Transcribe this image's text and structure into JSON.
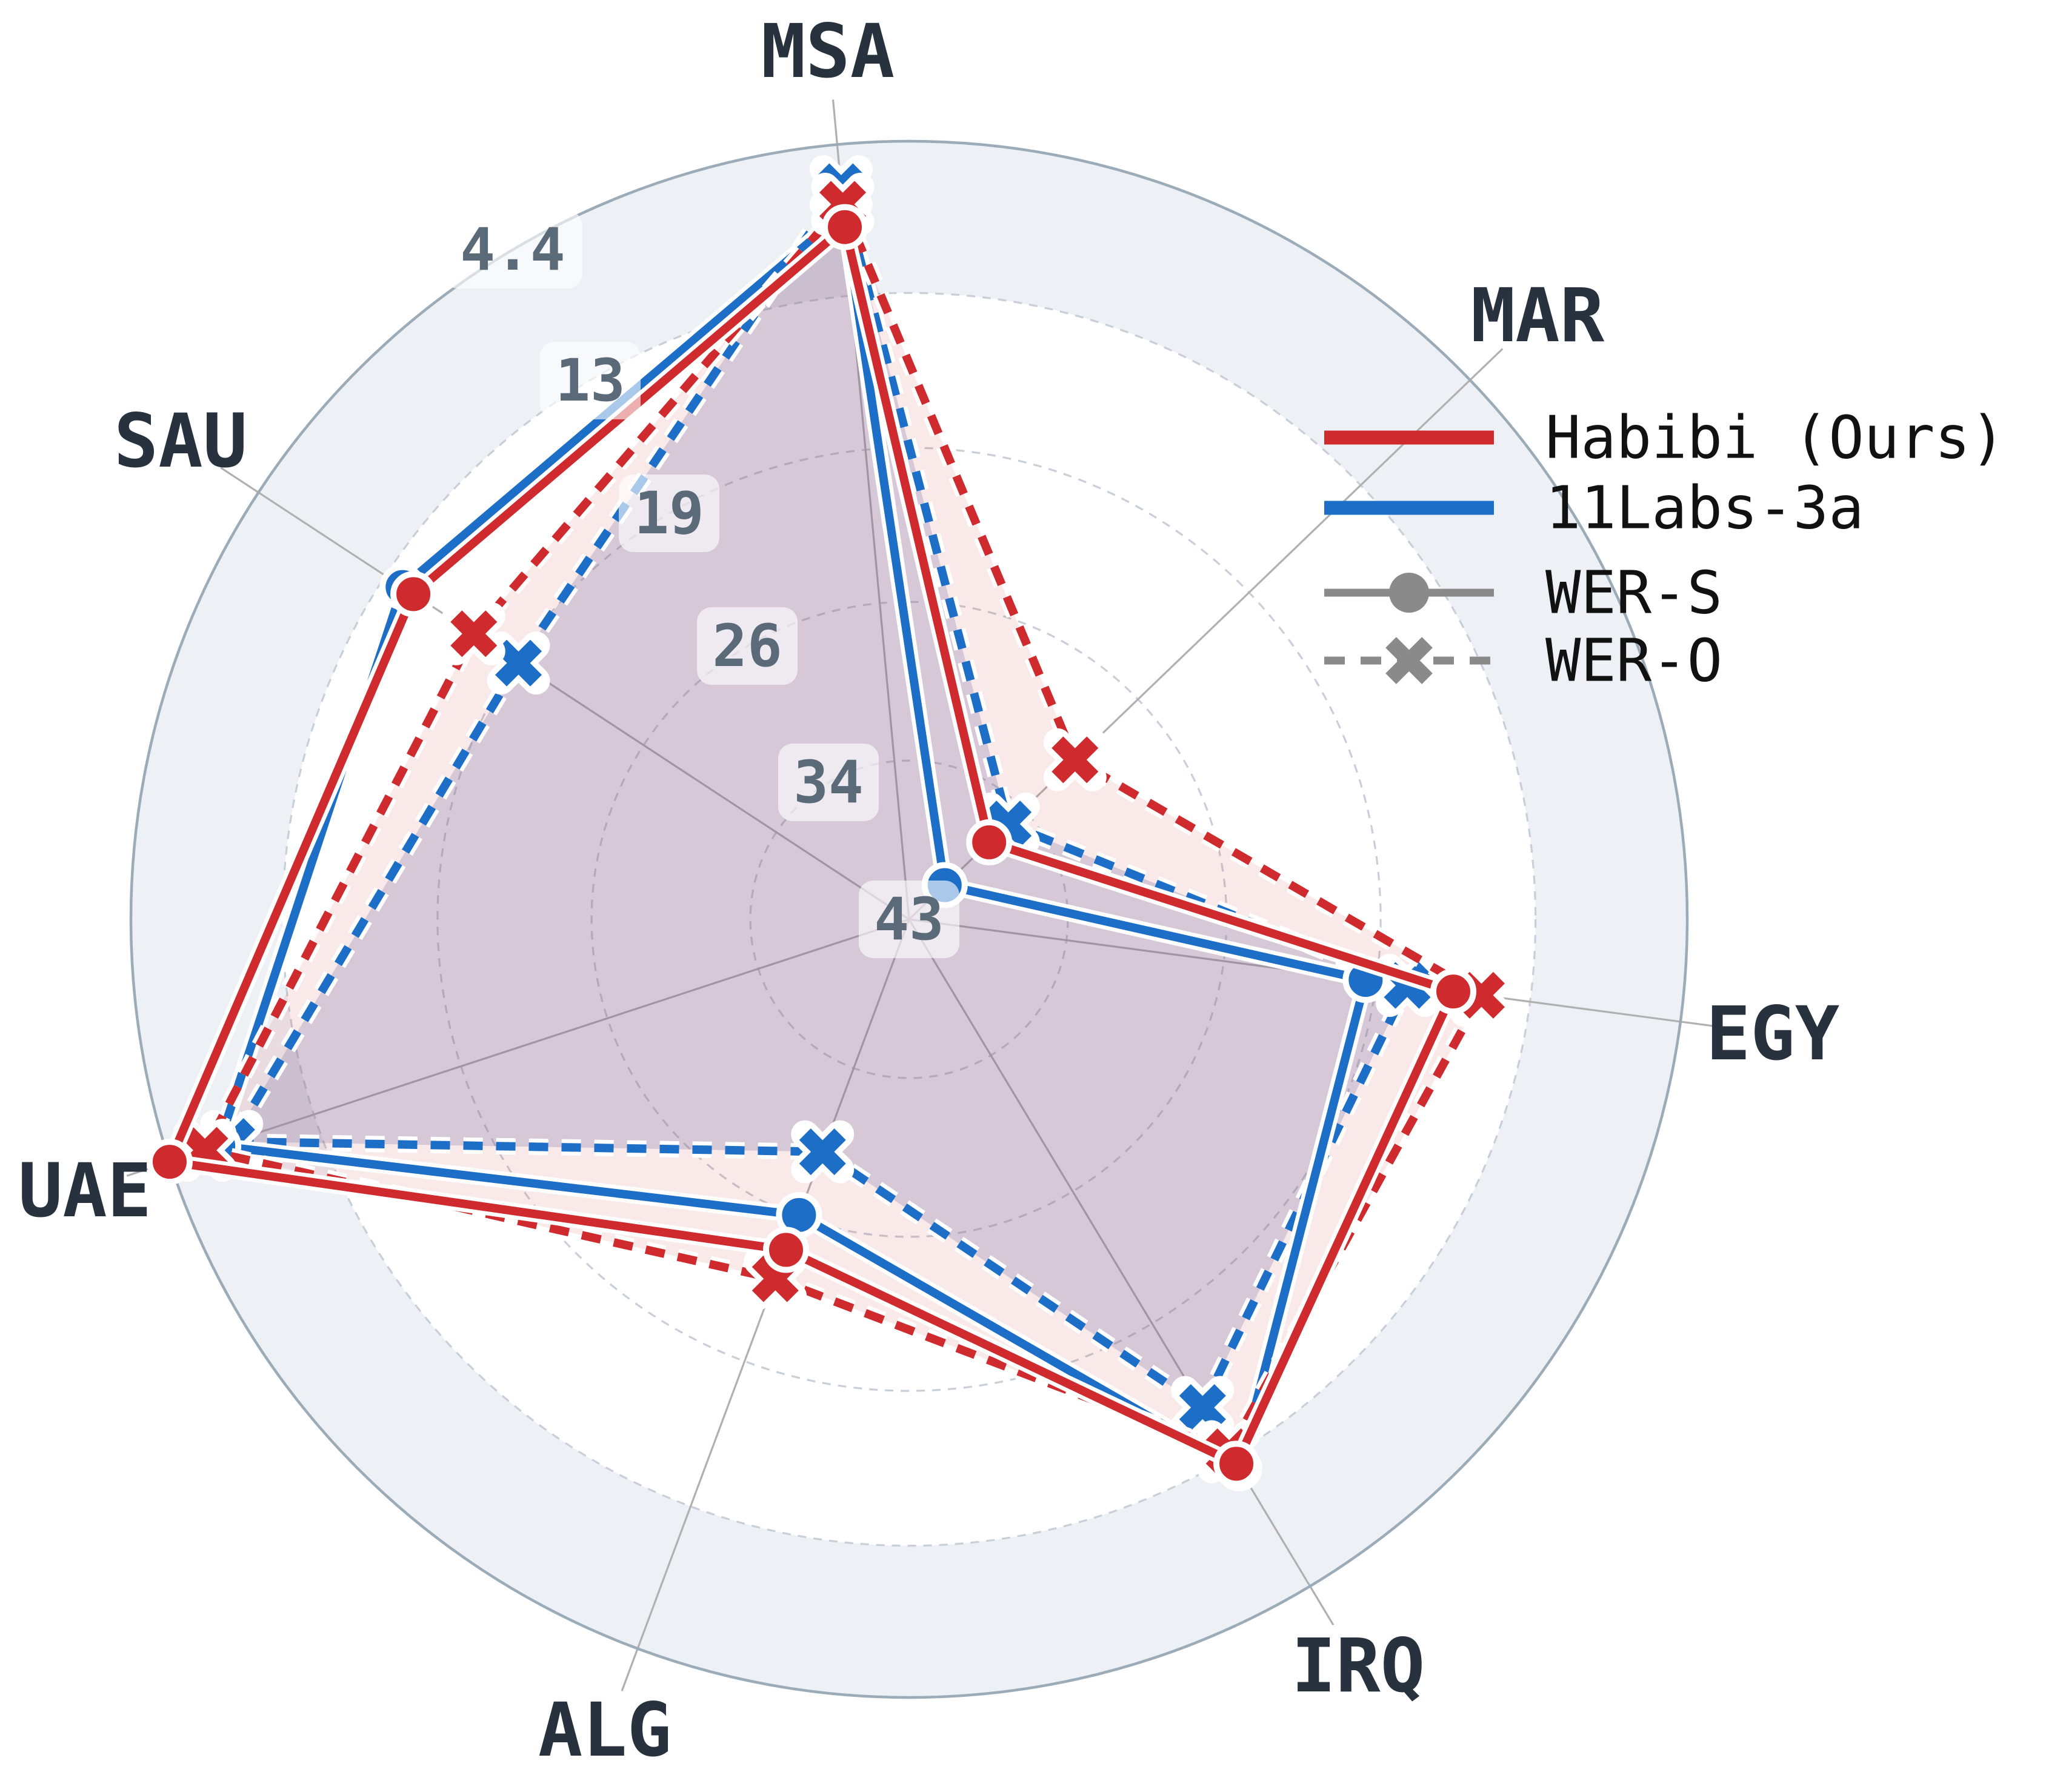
{
  "chart_data": {
    "type": "radar",
    "title": "",
    "categories": [
      "MSA",
      "MAR",
      "EGY",
      "IRQ",
      "ALG",
      "UAE",
      "SAU"
    ],
    "axis_layout": {
      "start_angle_deg": 95.3,
      "direction": "clockwise",
      "num_axes": 7
    },
    "radial_axis": {
      "inverted": true,
      "ticks": [
        43,
        34,
        26,
        19,
        13,
        4.4
      ],
      "tick_radius_fractions": [
        0,
        0.204,
        0.408,
        0.606,
        0.805,
        1.0
      ],
      "grid": "dashed-circles",
      "outer_ring": "solid"
    },
    "series": [
      {
        "id": "labs-wer-o",
        "model": "11Labs-3a",
        "metric": "WER-O",
        "color": "#1d6ec7",
        "line": "dashed",
        "marker": "x",
        "fill": true,
        "fill_color": "#6b7bb1",
        "fill_opacity": 0.27,
        "values": [
          6.8,
          35.2,
          17.8,
          15.2,
          29.5,
          8.1,
          19.2
        ]
      },
      {
        "id": "labs-wer-s",
        "model": "11Labs-3a",
        "metric": "WER-S",
        "color": "#1d6ec7",
        "line": "solid",
        "marker": "circle",
        "fill": false,
        "values": [
          8.3,
          40.2,
          19.5,
          12.2,
          26.1,
          7.3,
          13.8
        ]
      },
      {
        "id": "habibi-wer-o",
        "model": "Habibi (Ours)",
        "metric": "WER-O",
        "color": "#cf2b2e",
        "line": "dashed",
        "marker": "x",
        "fill": true,
        "fill_color": "#cc2b2b",
        "fill_opacity": 0.1,
        "values": [
          7.8,
          30.4,
          14.9,
          13.2,
          23.0,
          6.5,
          17.1
        ]
      },
      {
        "id": "habibi-wer-s",
        "model": "Habibi (Ours)",
        "metric": "WER-S",
        "color": "#cf2b2e",
        "line": "solid",
        "marker": "circle",
        "fill": false,
        "values": [
          9.1,
          36.7,
          16.0,
          12.5,
          24.4,
          4.4,
          14.3
        ]
      }
    ],
    "style": {
      "outer_band_fill": "#edf0f5",
      "ring_color": "#c8cfd9",
      "outer_ring_color": "#9cabb8",
      "spoke_color": "#b0b0b0",
      "halo_color": "#ffffff"
    }
  },
  "legend": {
    "marker_color": "#8a8a8a",
    "items": [
      {
        "label": "Habibi (Ours)"
      },
      {
        "label": "11Labs-3a"
      },
      {
        "label": "WER-S"
      },
      {
        "label": "WER-O"
      }
    ]
  }
}
